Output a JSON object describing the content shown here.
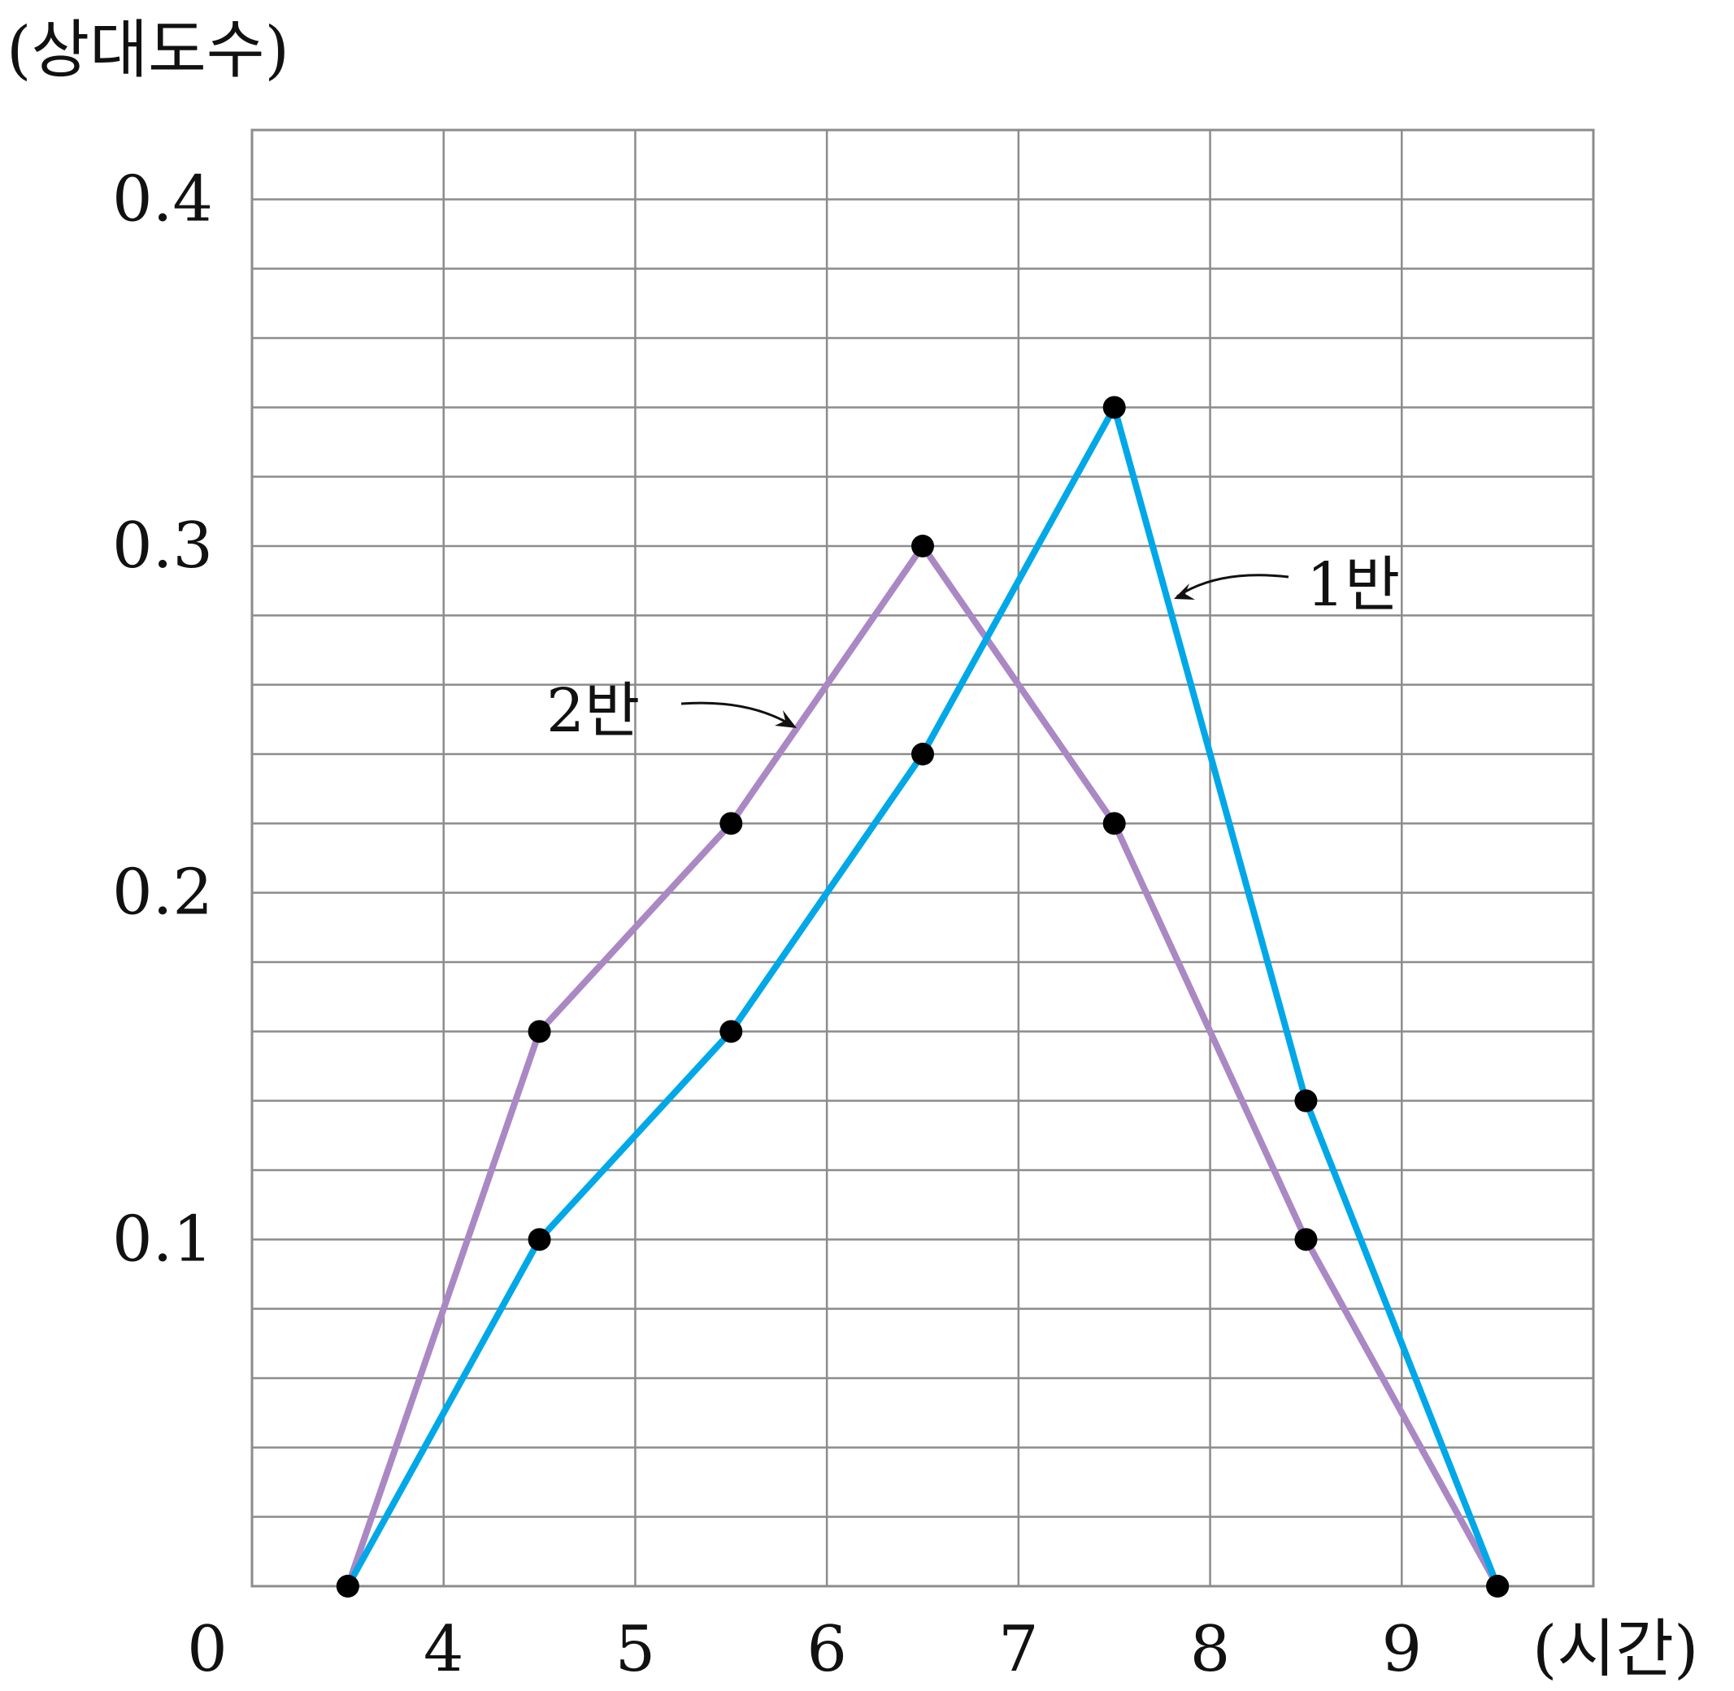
{
  "chart_data": {
    "type": "line",
    "ylabel": "(상대도수)",
    "xlabel": "(시간)",
    "origin_label": "0",
    "x_ticks": [
      "4",
      "5",
      "6",
      "7",
      "8",
      "9"
    ],
    "y_ticks": [
      "0.1",
      "0.2",
      "0.3",
      "0.4"
    ],
    "xlim": [
      3,
      10
    ],
    "ylim": [
      0,
      0.42
    ],
    "y_minor_step": 0.02,
    "grid": true,
    "series": [
      {
        "name": "1반",
        "color": "#00a8e8",
        "x": [
          3.5,
          4.5,
          5.5,
          6.5,
          7.5,
          8.5,
          9.5
        ],
        "y": [
          0,
          0.1,
          0.16,
          0.24,
          0.34,
          0.14,
          0
        ]
      },
      {
        "name": "2반",
        "color": "#aa88c4",
        "x": [
          3.5,
          4.5,
          5.5,
          6.5,
          7.5,
          8.5,
          9.5
        ],
        "y": [
          0,
          0.16,
          0.22,
          0.3,
          0.22,
          0.1,
          0
        ]
      }
    ]
  }
}
